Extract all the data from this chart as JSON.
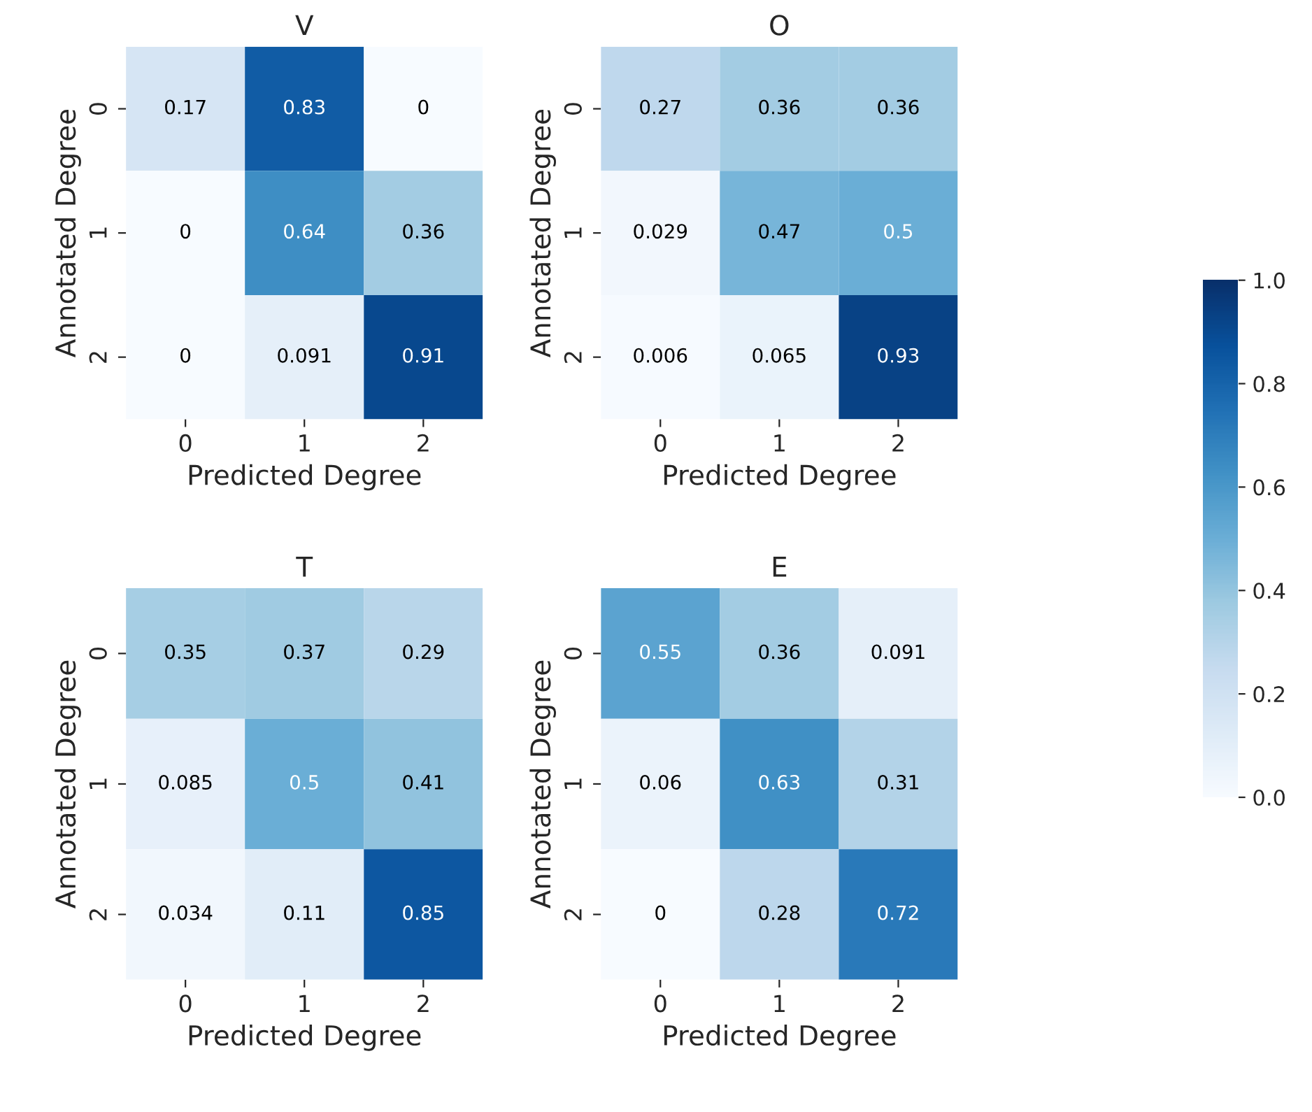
{
  "chart_data": [
    {
      "type": "heatmap",
      "title": "V",
      "xlabel": "Predicted Degree",
      "ylabel": "Annotated Degree",
      "categories": [
        "0",
        "1",
        "2"
      ],
      "y_categories": [
        "0",
        "1",
        "2"
      ],
      "cells": [
        [
          0.17,
          0.83,
          0
        ],
        [
          0,
          0.64,
          0.36
        ],
        [
          0,
          0.091,
          0.91
        ]
      ],
      "data_labels": true
    },
    {
      "type": "heatmap",
      "title": "O",
      "xlabel": "Predicted Degree",
      "ylabel": "Annotated Degree",
      "categories": [
        "0",
        "1",
        "2"
      ],
      "y_categories": [
        "0",
        "1",
        "2"
      ],
      "cells": [
        [
          0.27,
          0.36,
          0.36
        ],
        [
          0.029,
          0.47,
          0.5
        ],
        [
          0.006,
          0.065,
          0.93
        ]
      ],
      "data_labels": true
    },
    {
      "type": "heatmap",
      "title": "T",
      "xlabel": "Predicted Degree",
      "ylabel": "Annotated Degree",
      "categories": [
        "0",
        "1",
        "2"
      ],
      "y_categories": [
        "0",
        "1",
        "2"
      ],
      "cells": [
        [
          0.35,
          0.37,
          0.29
        ],
        [
          0.085,
          0.5,
          0.41
        ],
        [
          0.034,
          0.11,
          0.85
        ]
      ],
      "data_labels": true
    },
    {
      "type": "heatmap",
      "title": "E",
      "xlabel": "Predicted Degree",
      "ylabel": "Annotated Degree",
      "categories": [
        "0",
        "1",
        "2"
      ],
      "y_categories": [
        "0",
        "1",
        "2"
      ],
      "cells": [
        [
          0.55,
          0.36,
          0.091
        ],
        [
          0.06,
          0.63,
          0.31
        ],
        [
          0,
          0.28,
          0.72
        ]
      ],
      "clim": [
        0,
        1
      ],
      "cticks": [
        {
          "value": 0,
          "label": "0.0"
        },
        0.2,
        0.4,
        0.6,
        0.8,
        {
          "value": 1,
          "label": "1.0"
        }
      ],
      "data_labels": true
    }
  ]
}
